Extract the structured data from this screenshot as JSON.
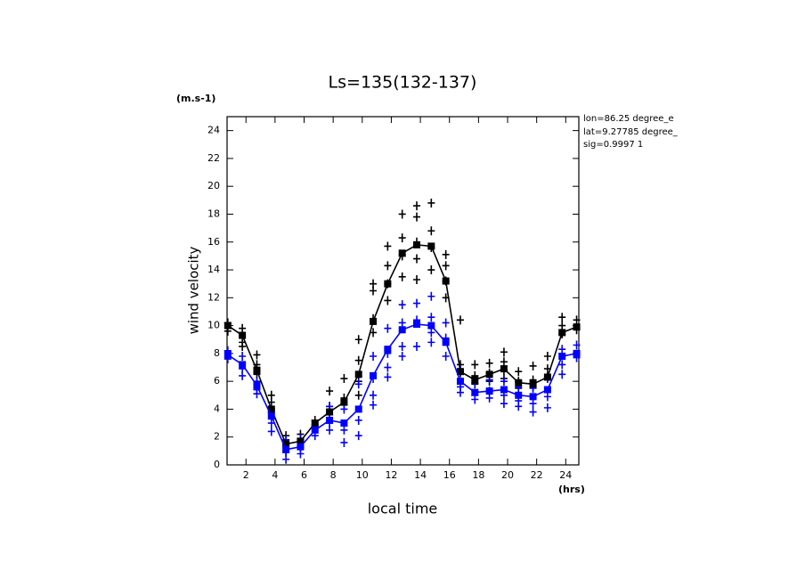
{
  "chart_data": {
    "type": "line",
    "title": "Ls=135(132-137)",
    "y_unit": "(m.s-1)",
    "x_unit": "(hrs)",
    "xlabel": "local time",
    "ylabel": "wind velocity",
    "annotations": [
      "lon=86.25 degree_e",
      "lat=9.27785 degree_",
      "sig=0.9997 1"
    ],
    "xlim": [
      0.7,
      24.9
    ],
    "ylim": [
      0,
      25
    ],
    "xticks": [
      2,
      4,
      6,
      8,
      10,
      12,
      14,
      16,
      18,
      20,
      22,
      24
    ],
    "yticks": [
      0,
      2,
      4,
      6,
      8,
      10,
      12,
      14,
      16,
      18,
      20,
      22,
      24
    ],
    "x": [
      0.75,
      1.75,
      2.75,
      3.75,
      4.75,
      5.75,
      6.75,
      7.75,
      8.75,
      9.75,
      10.75,
      11.75,
      12.75,
      13.75,
      14.75,
      15.75,
      16.75,
      17.75,
      18.75,
      19.75,
      20.75,
      21.75,
      22.75,
      23.75,
      24.75
    ],
    "series": [
      {
        "color": "#000000",
        "values": [
          10,
          9.3,
          6.8,
          4.0,
          1.5,
          1.7,
          3.0,
          3.8,
          4.5,
          6.5,
          10.3,
          13.0,
          15.2,
          15.8,
          15.7,
          13.2,
          6.7,
          6.1,
          6.5,
          6.9,
          5.9,
          5.8,
          6.3,
          9.5,
          9.9
        ]
      },
      {
        "color": "#0000ff",
        "values": [
          7.9,
          7.2,
          5.7,
          3.5,
          1.1,
          1.3,
          2.5,
          3.2,
          3.0,
          4.0,
          6.4,
          8.3,
          9.7,
          10.1,
          10.0,
          8.8,
          6.0,
          5.2,
          5.3,
          5.4,
          5.0,
          4.9,
          5.4,
          7.8,
          8.0
        ]
      }
    ],
    "scatter": [
      {
        "color": "#000000",
        "x": [
          0.75,
          0.75,
          1.75,
          1.75,
          1.75,
          2.75,
          2.75,
          2.75,
          3.75,
          3.75,
          3.75,
          4.75,
          4.75,
          4.75,
          5.75,
          5.75,
          5.75,
          6.75,
          6.75,
          7.75,
          7.75,
          7.75,
          8.75,
          8.75,
          8.75,
          9.75,
          9.75,
          9.75,
          9.75,
          10.75,
          10.75,
          10.75,
          10.75,
          11.75,
          11.75,
          11.75,
          11.75,
          12.75,
          12.75,
          12.75,
          12.75,
          13.75,
          13.75,
          13.75,
          13.75,
          13.75,
          14.75,
          14.75,
          14.75,
          14.75,
          15.75,
          15.75,
          15.75,
          15.75,
          16.75,
          16.75,
          16.75,
          17.75,
          17.75,
          17.75,
          18.75,
          18.75,
          18.75,
          19.75,
          19.75,
          19.75,
          19.75,
          20.75,
          20.75,
          20.75,
          21.75,
          21.75,
          21.75,
          22.75,
          22.75,
          22.75,
          23.75,
          23.75,
          23.75,
          24.75,
          24.75
        ],
        "values": [
          9.6,
          10.2,
          9.8,
          8.8,
          8.5,
          7.9,
          7.2,
          6.5,
          5.0,
          4.5,
          3.8,
          2.1,
          1.5,
          1.0,
          2.2,
          1.8,
          1.3,
          3.2,
          2.8,
          5.3,
          4.2,
          3.6,
          6.2,
          4.8,
          4.3,
          9.0,
          7.5,
          6.0,
          5.0,
          13.0,
          12.5,
          10.5,
          9.5,
          15.7,
          14.3,
          13.0,
          11.8,
          18.0,
          16.3,
          15.0,
          13.5,
          18.6,
          17.8,
          16.0,
          14.8,
          13.3,
          18.8,
          16.8,
          15.6,
          14.0,
          15.1,
          14.3,
          13.2,
          12.0,
          10.4,
          7.2,
          6.6,
          7.2,
          6.4,
          5.8,
          7.3,
          6.6,
          6.0,
          8.1,
          7.4,
          6.8,
          6.2,
          6.7,
          6.0,
          5.5,
          7.1,
          6.1,
          5.6,
          7.8,
          6.9,
          6.3,
          10.6,
          10.0,
          9.4,
          10.4,
          9.7
        ]
      },
      {
        "color": "#0000ff",
        "x": [
          0.75,
          0.75,
          1.75,
          1.75,
          1.75,
          2.75,
          2.75,
          2.75,
          3.75,
          3.75,
          3.75,
          4.75,
          4.75,
          4.75,
          5.75,
          5.75,
          5.75,
          6.75,
          6.75,
          7.75,
          7.75,
          7.75,
          8.75,
          8.75,
          8.75,
          9.75,
          9.75,
          9.75,
          10.75,
          10.75,
          10.75,
          10.75,
          11.75,
          11.75,
          11.75,
          11.75,
          12.75,
          12.75,
          12.75,
          12.75,
          13.75,
          13.75,
          13.75,
          14.75,
          14.75,
          14.75,
          14.75,
          15.75,
          15.75,
          15.75,
          16.75,
          16.75,
          16.75,
          17.75,
          17.75,
          17.75,
          18.75,
          18.75,
          18.75,
          19.75,
          19.75,
          19.75,
          20.75,
          20.75,
          20.75,
          21.75,
          21.75,
          21.75,
          22.75,
          22.75,
          22.75,
          23.75,
          23.75,
          23.75,
          24.75,
          24.75
        ],
        "values": [
          8.2,
          7.6,
          7.8,
          6.9,
          6.4,
          6.0,
          5.4,
          5.1,
          4.0,
          3.0,
          2.4,
          1.8,
          0.9,
          0.4,
          1.9,
          1.2,
          0.8,
          2.9,
          2.1,
          4.2,
          3.0,
          2.5,
          4.0,
          2.5,
          1.6,
          5.8,
          3.2,
          2.1,
          7.8,
          6.2,
          5.0,
          4.3,
          9.8,
          8.0,
          7.0,
          6.3,
          11.5,
          10.2,
          8.5,
          7.8,
          11.6,
          10.4,
          8.5,
          12.1,
          10.6,
          9.5,
          8.8,
          10.2,
          9.1,
          7.8,
          6.8,
          5.6,
          5.2,
          5.9,
          5.0,
          4.7,
          6.1,
          5.3,
          4.8,
          6.0,
          5.0,
          4.4,
          5.6,
          4.6,
          4.2,
          5.5,
          4.4,
          3.8,
          6.2,
          4.9,
          4.1,
          8.3,
          7.2,
          6.5,
          8.6,
          7.7
        ]
      }
    ]
  }
}
